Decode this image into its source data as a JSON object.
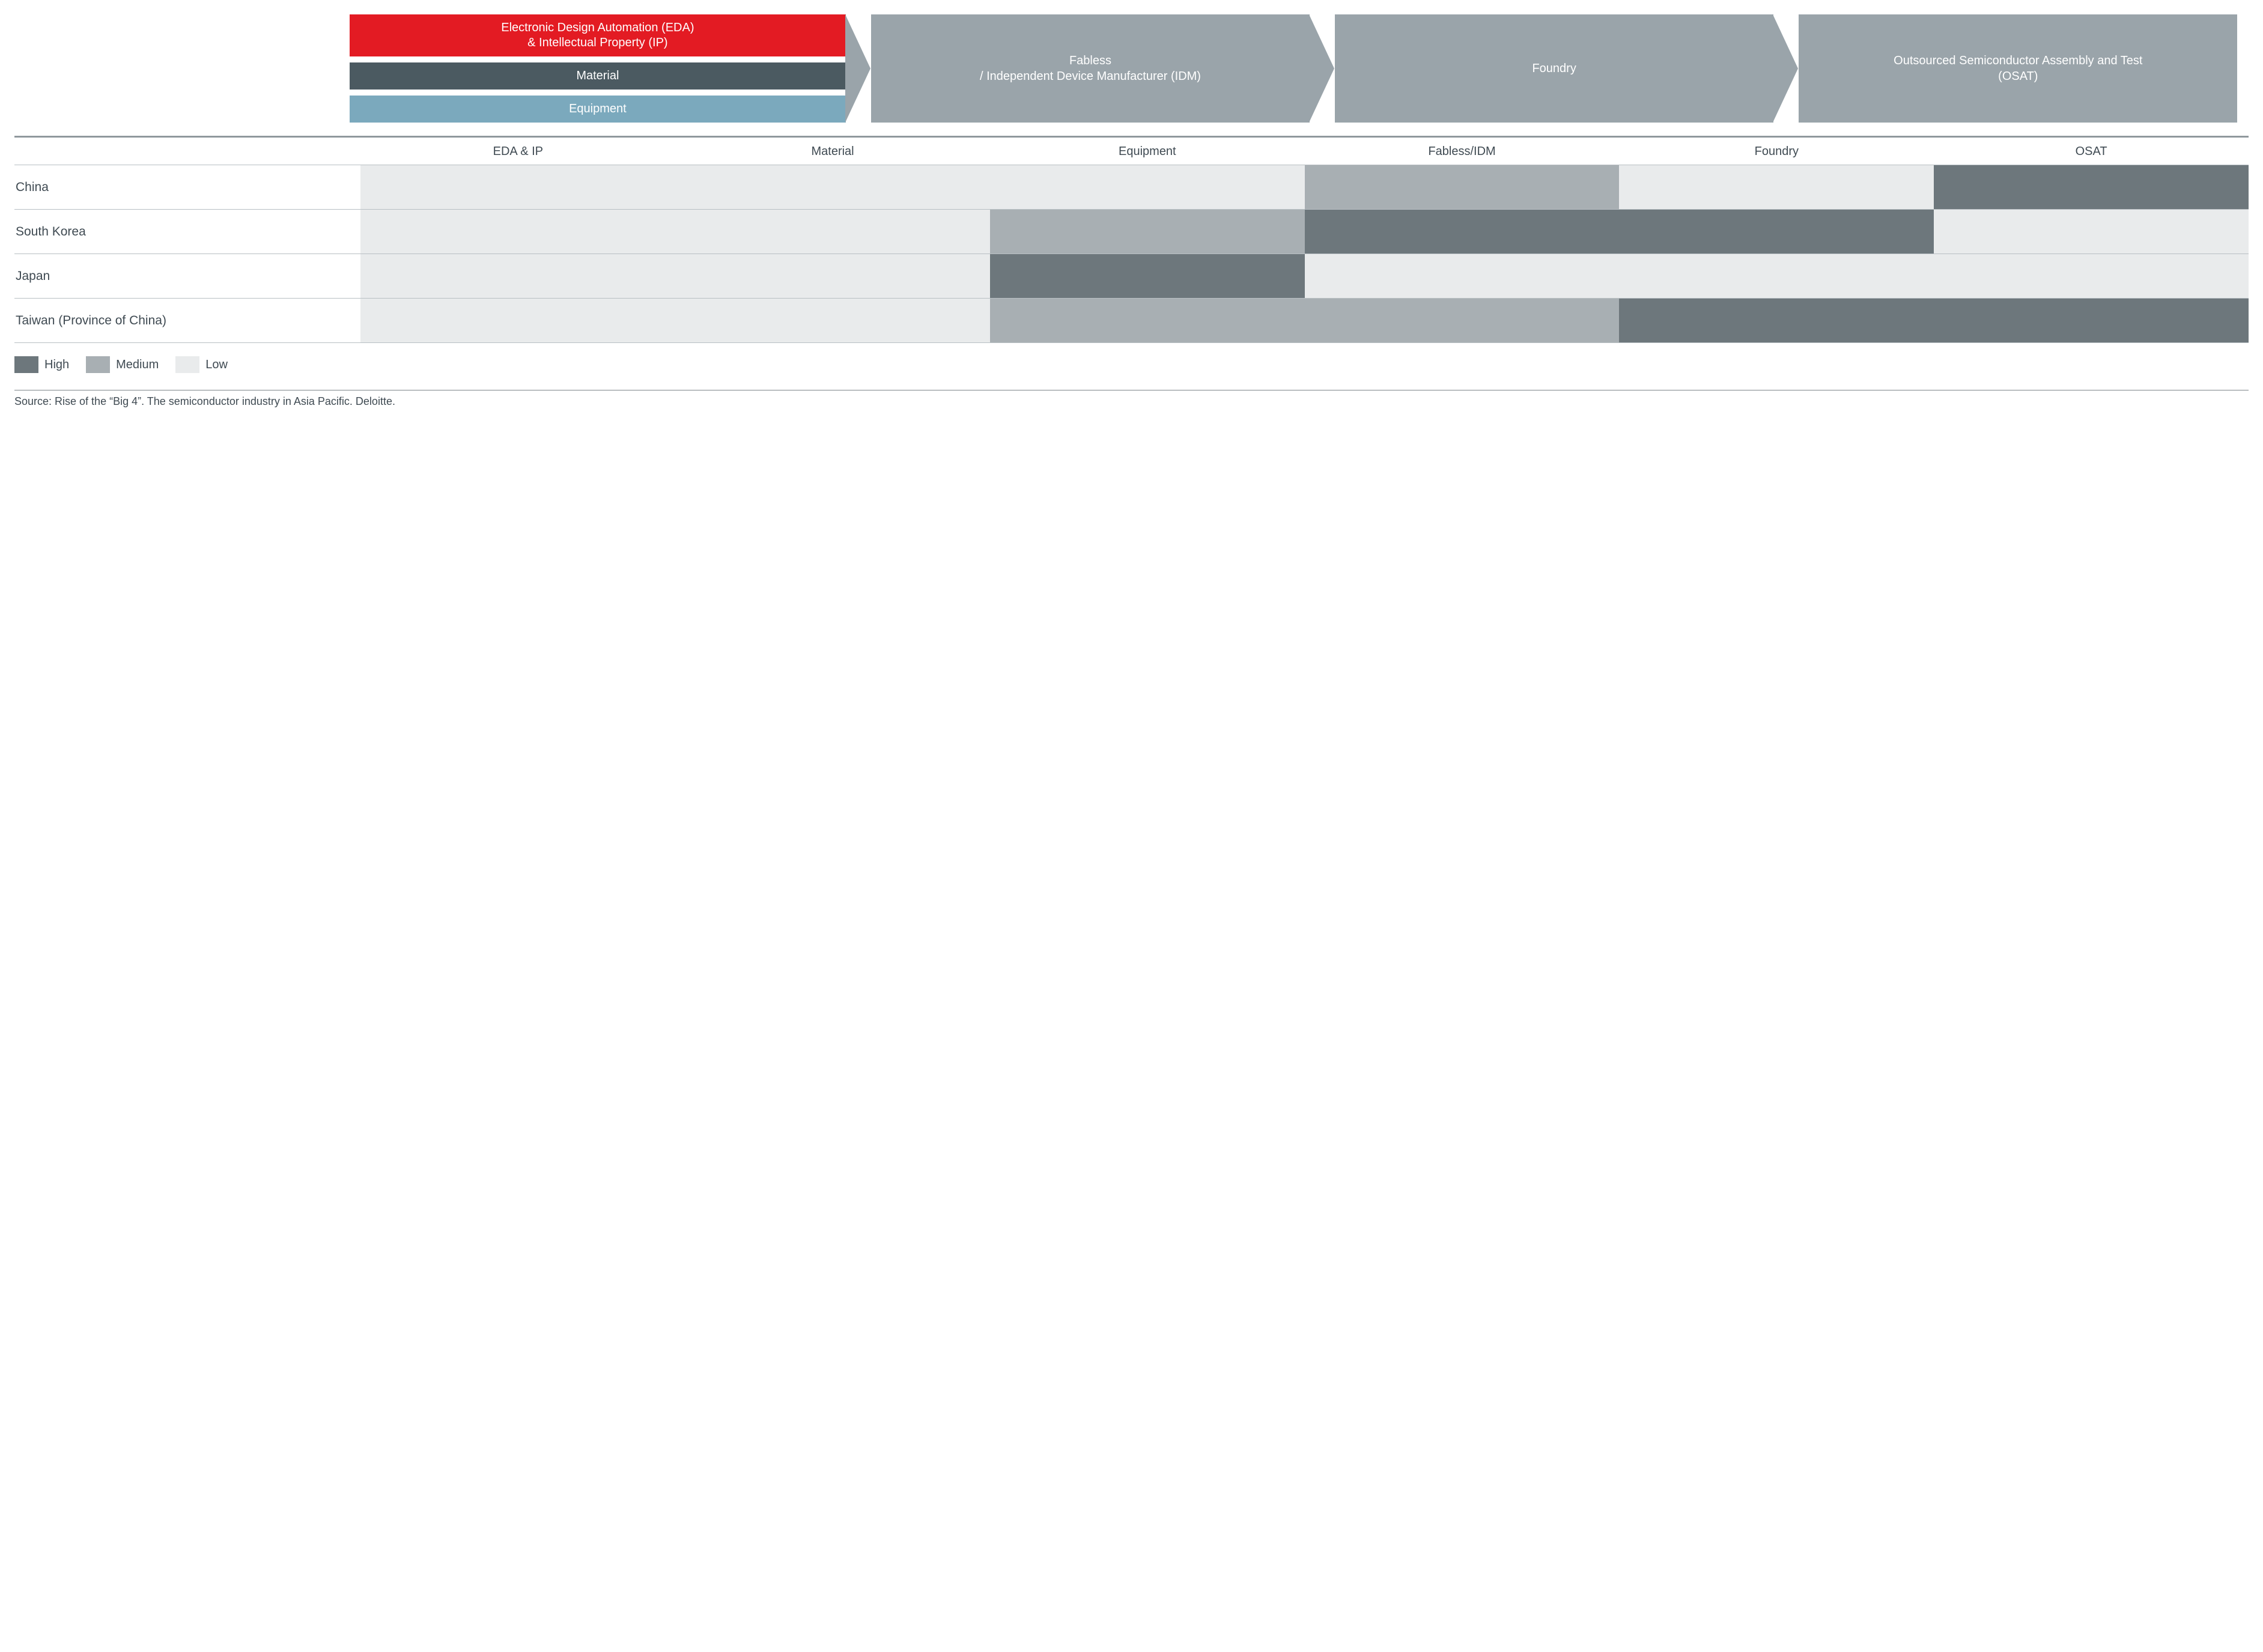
{
  "colors": {
    "red": "#e31b23",
    "dark": "#4b5a61",
    "blue": "#7ba9bd",
    "step_gray": "#9aa4aa",
    "text_on_dark": "#ffffff",
    "text": "#3f4a52",
    "rule": "#90989d",
    "row_rule": "#b8bfc3",
    "heat_high": "#6d777c",
    "heat_medium": "#a8afb3",
    "heat_low": "#e9ebec",
    "src_rule": "#7d858a"
  },
  "flow": {
    "inputs": [
      {
        "label": "Electronic Design Automation (EDA)\n& Intellectual Property (IP)",
        "bg": "red",
        "grow": 2.1
      },
      {
        "label": "Material",
        "bg": "dark",
        "grow": 1
      },
      {
        "label": "Equipment",
        "bg": "blue",
        "grow": 1
      }
    ],
    "steps": [
      {
        "label": "Fabless\n/ Independent Device Manufacturer (IDM)"
      },
      {
        "label": "Foundry"
      },
      {
        "label": "Outsourced Semiconductor Assembly and Test\n(OSAT)"
      }
    ]
  },
  "table": {
    "columns": [
      "EDA & IP",
      "Material",
      "Equipment",
      "Fabless/IDM",
      "Foundry",
      "OSAT"
    ],
    "row_label_width_pct": 15.5,
    "rows": [
      {
        "label": "China",
        "cells": [
          "low",
          "low",
          "low",
          "medium",
          "low",
          "high"
        ]
      },
      {
        "label": "South Korea",
        "cells": [
          "low",
          "low",
          "medium",
          "high",
          "high",
          "low"
        ]
      },
      {
        "label": "Japan",
        "cells": [
          "low",
          "low",
          "high",
          "low",
          "low",
          "low"
        ]
      },
      {
        "label": "Taiwan (Province of China)",
        "cells": [
          "low",
          "low",
          "medium",
          "medium",
          "high",
          "high"
        ]
      }
    ]
  },
  "legend": [
    {
      "label": "High",
      "level": "high"
    },
    {
      "label": "Medium",
      "level": "medium"
    },
    {
      "label": "Low",
      "level": "low"
    }
  ],
  "source": "Source: Rise of the “Big 4”. The semiconductor industry in Asia Pacific. Deloitte."
}
